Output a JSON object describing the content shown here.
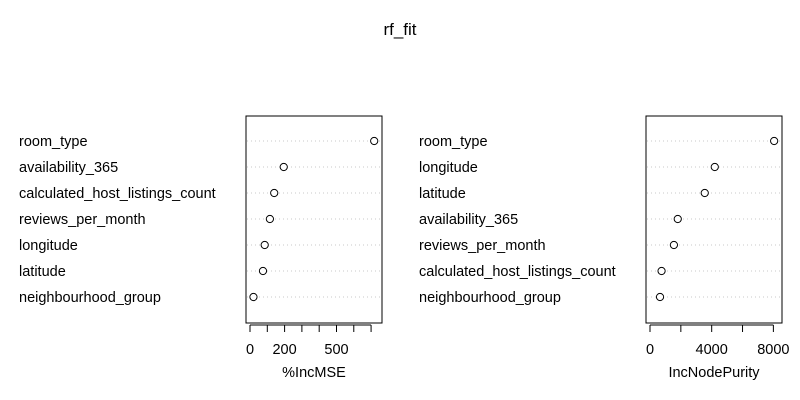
{
  "title": "rf_fit",
  "chart_data": [
    {
      "type": "scatter",
      "xlabel": "%IncMSE",
      "categories": [
        "room_type",
        "availability_365",
        "calculated_host_listings_count",
        "reviews_per_month",
        "longitude",
        "latitude",
        "neighbourhood_group"
      ],
      "values": [
        718,
        195,
        140,
        115,
        85,
        75,
        20
      ],
      "xlim": [
        0,
        740
      ],
      "xticks": [
        0,
        100,
        200,
        300,
        400,
        500,
        600,
        700
      ],
      "xtick_labels": [
        "0",
        "",
        "200",
        "",
        "",
        "500",
        "",
        ""
      ],
      "grid": false
    },
    {
      "type": "scatter",
      "xlabel": "IncNodePurity",
      "categories": [
        "room_type",
        "longitude",
        "latitude",
        "availability_365",
        "reviews_per_month",
        "calculated_host_listings_count",
        "neighbourhood_group"
      ],
      "values": [
        8050,
        4200,
        3550,
        1800,
        1550,
        750,
        650
      ],
      "xlim": [
        0,
        8300
      ],
      "xticks": [
        0,
        2000,
        4000,
        6000,
        8000
      ],
      "xtick_labels": [
        "0",
        "",
        "4000",
        "",
        "8000"
      ],
      "grid": false
    }
  ]
}
